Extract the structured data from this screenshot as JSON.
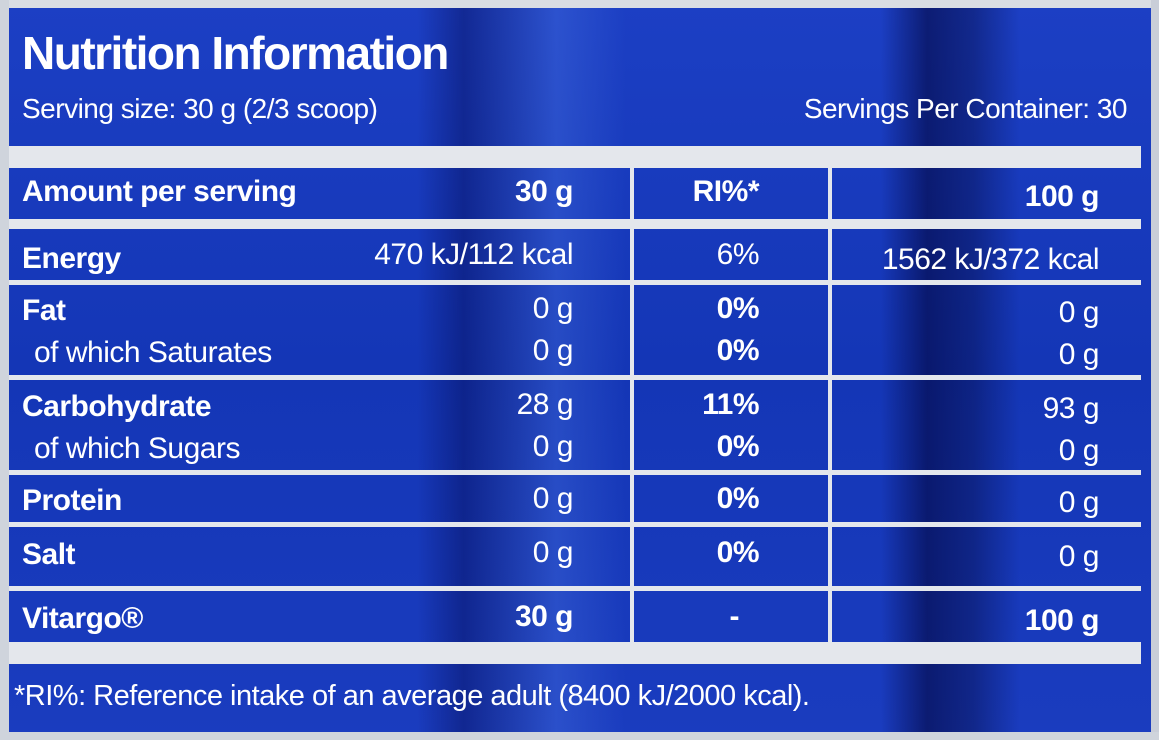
{
  "title": "Nutrition Information",
  "serving_size": "Serving size: 30 g (2/3 scoop)",
  "servings_per_container": "Servings Per Container: 30",
  "header": {
    "label": "Amount per serving",
    "col_30g": "30 g",
    "col_ri": "RI%*",
    "col_100g": "100 g"
  },
  "rows": [
    {
      "label": "Energy",
      "per_serving": "470 kJ/112 kcal",
      "ri": "6%",
      "per_100g": "1562 kJ/372 kcal"
    },
    {
      "label": "Fat",
      "per_serving": "0 g",
      "ri": "0%",
      "per_100g": "0 g"
    },
    {
      "label": "of which Saturates",
      "per_serving": "0 g",
      "ri": "0%",
      "per_100g": "0 g"
    },
    {
      "label": "Carbohydrate",
      "per_serving": "28 g",
      "ri": "11%",
      "per_100g": "93 g"
    },
    {
      "label": "of which Sugars",
      "per_serving": "0 g",
      "ri": "0%",
      "per_100g": "0 g"
    },
    {
      "label": "Protein",
      "per_serving": "0 g",
      "ri": "0%",
      "per_100g": "0 g"
    },
    {
      "label": "Salt",
      "per_serving": "0 g",
      "ri": "0%",
      "per_100g": "0 g"
    },
    {
      "label": "Vitargo®",
      "per_serving": "30 g",
      "ri": "-",
      "per_100g": "100 g"
    }
  ],
  "footnote": "*RI%: Reference intake of an average adult (8400 kJ/2000 kcal)."
}
